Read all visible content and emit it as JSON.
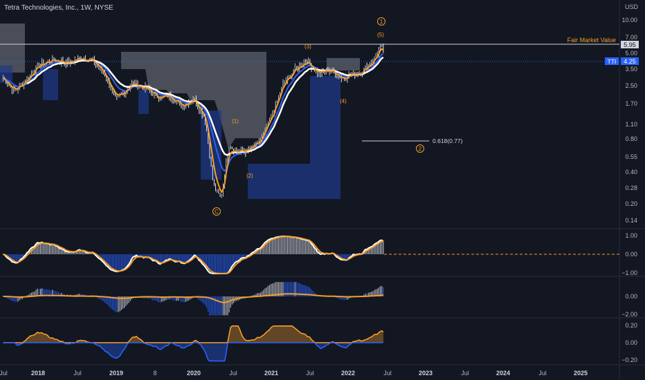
{
  "header": {
    "symbol_line": "Tetra Technologies, Inc., 1W, NYSE"
  },
  "currency": "USD",
  "colors": {
    "bg": "#131722",
    "price_up": "#d1d4dc",
    "price_down": "#ffffff",
    "ma_blue": "#2962ff",
    "ma_white": "#ffffff",
    "ma_orange": "#f59e2b",
    "cloud_gray": "#787b86",
    "cloud_blue": "#1e3a8a",
    "grid": "#2a2e39"
  },
  "price_axis": {
    "scale": "log",
    "ticks": [
      "10.00",
      "7.00",
      "5.00",
      "3.50",
      "2.50",
      "1.70",
      "1.10",
      "0.80",
      "0.55",
      "0.40",
      "0.28",
      "0.20",
      "0.14"
    ],
    "last_price_label": "5.95",
    "symbol_tag": "TTI",
    "symbol_tag_value": "4.25"
  },
  "annotations": {
    "fair_value_label": "Fair Market Value",
    "fib_label": "0.618(0.77)",
    "wave_labels": [
      "(1)",
      "(2)",
      "(3)",
      "(4)",
      "(5)",
      "1",
      "2",
      "C"
    ]
  },
  "time_axis": {
    "labels": [
      "Jul",
      "2018",
      "Jul",
      "2019",
      "8",
      "2020",
      "Jul",
      "2021",
      "Jul",
      "2022",
      "Jul",
      "2023",
      "Jul",
      "2024",
      "Jul",
      "2025"
    ]
  },
  "osc1_axis": {
    "ticks": [
      "1.00",
      "0.00",
      "−1.00"
    ]
  },
  "osc2_axis": {
    "ticks": [
      "0.00",
      "−2.00"
    ]
  },
  "osc3_axis": {
    "ticks": [
      "0.20",
      "0.00",
      "−0.20"
    ]
  },
  "chart_data": {
    "type": "line",
    "title": "Tetra Technologies, Inc., 1W, NYSE",
    "y_scale": "log",
    "ylim": [
      0.13,
      11
    ],
    "x_range": [
      "2017-06",
      "2025-08"
    ],
    "price_path": [
      {
        "x": 2017.55,
        "y": 2.9
      },
      {
        "x": 2017.7,
        "y": 2.2
      },
      {
        "x": 2017.85,
        "y": 2.8
      },
      {
        "x": 2018.0,
        "y": 3.8
      },
      {
        "x": 2018.2,
        "y": 4.3
      },
      {
        "x": 2018.4,
        "y": 4.0
      },
      {
        "x": 2018.55,
        "y": 4.5
      },
      {
        "x": 2018.7,
        "y": 4.2
      },
      {
        "x": 2018.85,
        "y": 3.2
      },
      {
        "x": 2019.0,
        "y": 1.8
      },
      {
        "x": 2019.2,
        "y": 2.6
      },
      {
        "x": 2019.4,
        "y": 2.3
      },
      {
        "x": 2019.55,
        "y": 1.9
      },
      {
        "x": 2019.7,
        "y": 2.0
      },
      {
        "x": 2019.85,
        "y": 1.6
      },
      {
        "x": 2020.0,
        "y": 1.9
      },
      {
        "x": 2020.15,
        "y": 1.2
      },
      {
        "x": 2020.25,
        "y": 0.3
      },
      {
        "x": 2020.35,
        "y": 0.22
      },
      {
        "x": 2020.45,
        "y": 0.7
      },
      {
        "x": 2020.55,
        "y": 0.6
      },
      {
        "x": 2020.7,
        "y": 0.62
      },
      {
        "x": 2020.85,
        "y": 0.75
      },
      {
        "x": 2021.0,
        "y": 1.3
      },
      {
        "x": 2021.15,
        "y": 2.6
      },
      {
        "x": 2021.3,
        "y": 3.5
      },
      {
        "x": 2021.45,
        "y": 4.2
      },
      {
        "x": 2021.6,
        "y": 3.2
      },
      {
        "x": 2021.75,
        "y": 3.5
      },
      {
        "x": 2021.9,
        "y": 2.9
      },
      {
        "x": 2022.0,
        "y": 3.1
      },
      {
        "x": 2022.15,
        "y": 3.3
      },
      {
        "x": 2022.3,
        "y": 4.2
      },
      {
        "x": 2022.4,
        "y": 5.6
      },
      {
        "x": 2022.45,
        "y": 4.9
      }
    ],
    "fair_market_value": 5.95,
    "tti_value": 4.25,
    "fib_level": 0.77
  }
}
